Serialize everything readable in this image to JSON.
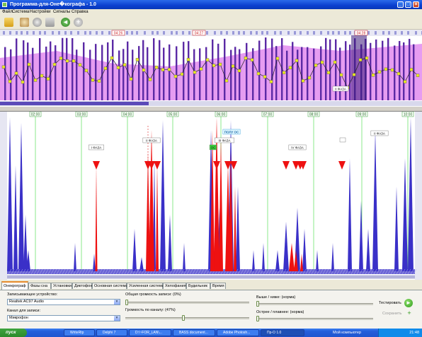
{
  "window": {
    "title": "Программа-для-Оне�кографа - 1.0"
  },
  "menu": [
    "Файл",
    "Система",
    "Настройки",
    "Сигналы",
    "Справка"
  ],
  "toolbar": {
    "icons": [
      "open-folder-icon",
      "save-disk-icon",
      "record-icon",
      "print-icon",
      "back-arrow-icon",
      "add-plus-icon"
    ]
  },
  "top_panel": {
    "time_markers": [
      "04:26",
      "04:27",
      "04:28"
    ],
    "annotation": "II ФАЗА"
  },
  "bottom_panel": {
    "time_labels": [
      "02:00",
      "03:00",
      "04:00",
      "05:00",
      "06:00",
      "07:00",
      "08:00",
      "09:00",
      "10:00"
    ],
    "annotations": [
      "I ФАЗА",
      "II ФАЗА",
      "III ФАЗА",
      "IV ФАЗА",
      "ПОЛУ ОС",
      "ОС",
      "II ФАЗА"
    ]
  },
  "tabs": [
    "Онекрограф",
    "Фазы сна",
    "Установки",
    "Диктофон",
    "Основная система",
    "Усиленная система",
    "Хелофания",
    "Будильник",
    "Время"
  ],
  "controls": {
    "device_label": "Записывающее устройство:",
    "device_value": "Realtek AC97 Audio",
    "channel_label": "Канал для записи:",
    "channel_value": "Микрофон",
    "overall_volume_label": "Общая громкость записи: (0%)",
    "overall_volume_pct": 0,
    "channel_volume_label": "Громкость по каналу: (47%)",
    "channel_volume_pct": 47,
    "pitch_label": "Выше / ниже: (норма)",
    "pitch_pct": 0,
    "sharp_label": "Острее / плавнее: (норма)",
    "sharp_pct": 0,
    "test_label": "Тестировать",
    "save_label": "Сохранить"
  },
  "taskbar": {
    "start": "пуск",
    "tasks": [
      "WriteRtp",
      "Delphi 7",
      "D:\\~FOR_LAN\\...",
      "BASS document...",
      "Adobe Photosh...",
      "Пр-О 1.0"
    ],
    "tray_label": "Мой компьютер",
    "clock": "21:48"
  },
  "colors": {
    "bar": "#5b2aa5",
    "bar_light": "#e28bef",
    "signal": "#3a30c8",
    "event": "#ee1111",
    "gridline": "#6ee36e",
    "line": "#222222",
    "square": "#ecec1f"
  }
}
